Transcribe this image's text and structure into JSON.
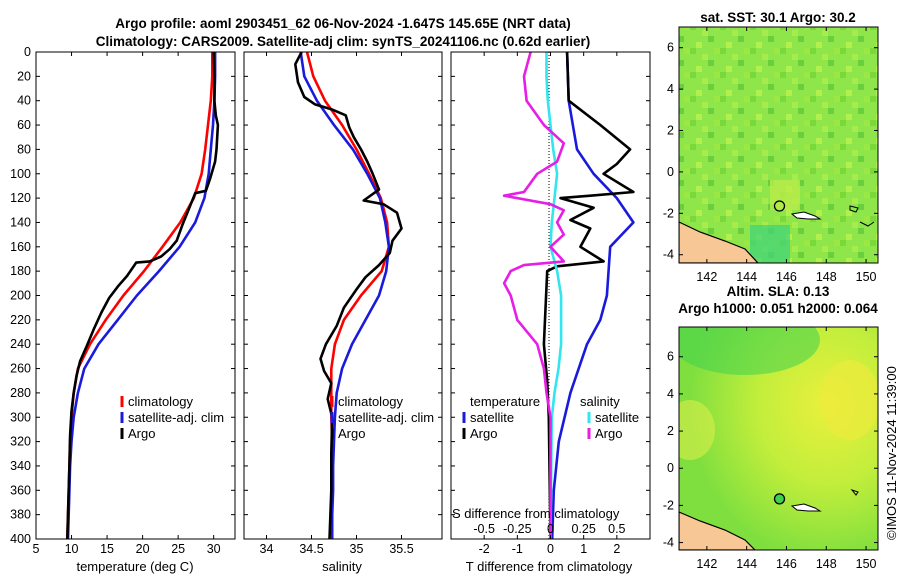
{
  "header": {
    "title_line1": "Argo profile: aoml 2903451_62 06-Nov-2024 -1.647S 145.65E (NRT data)",
    "title_line2": "Climatology: CARS2009. Satellite-adj clim: synTS_20241106.nc (0.62d earlier)"
  },
  "colors": {
    "climatology": "#ff0000",
    "satellite": "#1a1adc",
    "argo": "#000000",
    "salinity_sat": "#33e5ee",
    "salinity_argo": "#e61ee6",
    "land": "#f8c796"
  },
  "depth_axis": {
    "min": 0,
    "max": 400,
    "ticks": [
      "0",
      "20",
      "40",
      "60",
      "80",
      "100",
      "120",
      "140",
      "160",
      "180",
      "200",
      "220",
      "240",
      "260",
      "280",
      "300",
      "320",
      "340",
      "360",
      "380",
      "400"
    ]
  },
  "chart_data": [
    {
      "type": "line",
      "panel": "temperature",
      "xlabel": "temperature (deg C)",
      "xlim": [
        5,
        33
      ],
      "xticks": [
        "5",
        "10",
        "15",
        "20",
        "25",
        "30"
      ],
      "ylim": [
        400,
        0
      ],
      "series": [
        {
          "name": "climatology",
          "color": "#ff0000",
          "points": [
            [
              29.8,
              0
            ],
            [
              29.8,
              20
            ],
            [
              29.6,
              40
            ],
            [
              29.2,
              60
            ],
            [
              28.8,
              80
            ],
            [
              28.3,
              100
            ],
            [
              27.2,
              120
            ],
            [
              25.3,
              140
            ],
            [
              22.8,
              160
            ],
            [
              20.2,
              180
            ],
            [
              17.3,
              200
            ],
            [
              14.8,
              220
            ],
            [
              12.6,
              240
            ],
            [
              10.9,
              260
            ],
            [
              10.3,
              280
            ],
            [
              10.0,
              300
            ],
            [
              9.8,
              320
            ],
            [
              9.7,
              340
            ],
            [
              9.6,
              360
            ],
            [
              9.5,
              380
            ],
            [
              9.4,
              400
            ]
          ]
        },
        {
          "name": "satellite-adj. clim",
          "color": "#1a1adc",
          "points": [
            [
              30.2,
              0
            ],
            [
              30.2,
              20
            ],
            [
              30.1,
              40
            ],
            [
              29.9,
              60
            ],
            [
              29.6,
              80
            ],
            [
              29.3,
              100
            ],
            [
              28.7,
              120
            ],
            [
              27.4,
              140
            ],
            [
              25.2,
              160
            ],
            [
              22.3,
              180
            ],
            [
              19.2,
              200
            ],
            [
              16.5,
              220
            ],
            [
              13.8,
              240
            ],
            [
              11.8,
              260
            ],
            [
              10.9,
              280
            ],
            [
              10.3,
              300
            ],
            [
              10.0,
              320
            ],
            [
              9.8,
              340
            ],
            [
              9.7,
              360
            ],
            [
              9.6,
              380
            ],
            [
              9.5,
              400
            ]
          ]
        },
        {
          "name": "Argo",
          "color": "#000000",
          "points": [
            [
              30.0,
              0
            ],
            [
              30.1,
              20
            ],
            [
              30.1,
              40
            ],
            [
              30.3,
              52
            ],
            [
              30.6,
              60
            ],
            [
              30.4,
              80
            ],
            [
              30.2,
              90
            ],
            [
              29.5,
              104
            ],
            [
              28.9,
              114
            ],
            [
              27.4,
              116
            ],
            [
              26.3,
              132
            ],
            [
              25.6,
              142
            ],
            [
              24.8,
              155
            ],
            [
              23.8,
              162
            ],
            [
              22.6,
              168
            ],
            [
              21.0,
              172
            ],
            [
              19.1,
              173
            ],
            [
              17.8,
              184
            ],
            [
              16.6,
              192
            ],
            [
              15.3,
              202
            ],
            [
              14.2,
              214
            ],
            [
              13.1,
              228
            ],
            [
              12.1,
              242
            ],
            [
              11.2,
              254
            ],
            [
              10.7,
              266
            ],
            [
              10.3,
              280
            ],
            [
              10.0,
              295
            ],
            [
              9.8,
              315
            ],
            [
              9.7,
              340
            ],
            [
              9.6,
              360
            ],
            [
              9.5,
              380
            ],
            [
              9.4,
              400
            ]
          ]
        }
      ]
    },
    {
      "type": "line",
      "panel": "salinity",
      "xlabel": "salinity",
      "xlim": [
        33.75,
        35.95
      ],
      "xticks": [
        "34",
        "34.5",
        "35",
        "35.5"
      ],
      "ylim": [
        400,
        0
      ],
      "series": [
        {
          "name": "climatology",
          "color": "#ff0000",
          "points": [
            [
              34.45,
              0
            ],
            [
              34.52,
              20
            ],
            [
              34.65,
              40
            ],
            [
              34.84,
              60
            ],
            [
              35.0,
              80
            ],
            [
              35.14,
              100
            ],
            [
              35.27,
              120
            ],
            [
              35.34,
              140
            ],
            [
              35.36,
              160
            ],
            [
              35.28,
              180
            ],
            [
              35.05,
              200
            ],
            [
              34.86,
              220
            ],
            [
              34.76,
              240
            ],
            [
              34.72,
              260
            ],
            [
              34.72,
              280
            ],
            [
              34.72,
              300
            ],
            [
              34.73,
              320
            ],
            [
              34.73,
              340
            ],
            [
              34.73,
              360
            ],
            [
              34.73,
              380
            ],
            [
              34.73,
              400
            ]
          ]
        },
        {
          "name": "satellite-adj. clim",
          "color": "#1a1adc",
          "points": [
            [
              34.38,
              0
            ],
            [
              34.42,
              20
            ],
            [
              34.56,
              40
            ],
            [
              34.75,
              60
            ],
            [
              34.96,
              80
            ],
            [
              35.12,
              100
            ],
            [
              35.26,
              120
            ],
            [
              35.32,
              140
            ],
            [
              35.36,
              160
            ],
            [
              35.33,
              180
            ],
            [
              35.25,
              200
            ],
            [
              35.1,
              220
            ],
            [
              34.95,
              240
            ],
            [
              34.84,
              260
            ],
            [
              34.78,
              280
            ],
            [
              34.76,
              300
            ],
            [
              34.75,
              320
            ],
            [
              34.74,
              340
            ],
            [
              34.74,
              360
            ],
            [
              34.73,
              380
            ],
            [
              34.73,
              400
            ]
          ]
        },
        {
          "name": "Argo",
          "color": "#000000",
          "points": [
            [
              34.39,
              0
            ],
            [
              34.32,
              10
            ],
            [
              34.35,
              25
            ],
            [
              34.42,
              37
            ],
            [
              34.54,
              43
            ],
            [
              34.72,
              47
            ],
            [
              34.88,
              52
            ],
            [
              34.92,
              62
            ],
            [
              34.97,
              70
            ],
            [
              35.05,
              80
            ],
            [
              35.12,
              90
            ],
            [
              35.18,
              100
            ],
            [
              35.25,
              113
            ],
            [
              35.08,
              122
            ],
            [
              35.3,
              125
            ],
            [
              35.45,
              132
            ],
            [
              35.5,
              145
            ],
            [
              35.4,
              155
            ],
            [
              35.37,
              165
            ],
            [
              35.25,
              175
            ],
            [
              35.1,
              185
            ],
            [
              35.0,
              195
            ],
            [
              34.86,
              210
            ],
            [
              34.78,
              225
            ],
            [
              34.66,
              240
            ],
            [
              34.6,
              252
            ],
            [
              34.64,
              262
            ],
            [
              34.72,
              272
            ],
            [
              34.68,
              285
            ],
            [
              34.73,
              300
            ],
            [
              34.72,
              330
            ],
            [
              34.72,
              360
            ],
            [
              34.7,
              400
            ]
          ]
        }
      ]
    },
    {
      "type": "line",
      "panel": "difference",
      "xlabel": "T difference from climatology",
      "xlim_T": [
        -3,
        3
      ],
      "xticks_T": [
        "-2",
        "-1",
        "0",
        "1",
        "2"
      ],
      "secondary_label": "S difference from climatology",
      "xlim_S": [
        -0.75,
        0.75
      ],
      "xticks_S": [
        "-0.5",
        "-0.25",
        "0",
        "0.25",
        "0.5"
      ],
      "ylim": [
        400,
        0
      ],
      "legend": {
        "temperature_heading": "temperature",
        "salinity_heading": "salinity",
        "satellite": "satellite",
        "argo": "Argo"
      },
      "series": [
        {
          "name": "temperature satellite",
          "color": "#1a1adc",
          "points": [
            [
              0.5,
              0
            ],
            [
              0.55,
              40
            ],
            [
              0.8,
              80
            ],
            [
              1.3,
              100
            ],
            [
              2.0,
              120
            ],
            [
              2.5,
              140
            ],
            [
              1.8,
              160
            ],
            [
              1.7,
              200
            ],
            [
              1.5,
              220
            ],
            [
              1.1,
              240
            ],
            [
              0.6,
              280
            ],
            [
              0.25,
              320
            ],
            [
              0.1,
              360
            ],
            [
              0.05,
              400
            ]
          ]
        },
        {
          "name": "temperature Argo",
          "color": "#000000",
          "points": [
            [
              0.5,
              0
            ],
            [
              0.55,
              40
            ],
            [
              1.5,
              60
            ],
            [
              2.4,
              80
            ],
            [
              2.0,
              92
            ],
            [
              1.6,
              100
            ],
            [
              2.5,
              115
            ],
            [
              1.2,
              118
            ],
            [
              0.3,
              120
            ],
            [
              1.3,
              128
            ],
            [
              0.6,
              138
            ],
            [
              1.2,
              145
            ],
            [
              0.9,
              160
            ],
            [
              1.6,
              172
            ],
            [
              0.2,
              176
            ],
            [
              -0.1,
              180
            ],
            [
              -0.2,
              240
            ],
            [
              -0.1,
              270
            ],
            [
              -0.05,
              300
            ],
            [
              0.0,
              400
            ]
          ]
        },
        {
          "name": "salinity satellite",
          "color": "#33e5ee",
          "points": [
            [
              -0.03,
              0
            ],
            [
              -0.03,
              20
            ],
            [
              -0.02,
              40
            ],
            [
              0.0,
              60
            ],
            [
              0.02,
              80
            ],
            [
              0.05,
              100
            ],
            [
              0.03,
              120
            ],
            [
              0.01,
              140
            ],
            [
              0.0,
              160
            ],
            [
              0.05,
              180
            ],
            [
              0.08,
              200
            ],
            [
              0.08,
              240
            ],
            [
              0.06,
              260
            ],
            [
              0.03,
              280
            ],
            [
              0.01,
              300
            ],
            [
              0.0,
              400
            ]
          ]
        },
        {
          "name": "salinity Argo",
          "color": "#e61ee6",
          "points": [
            [
              -0.15,
              0
            ],
            [
              -0.2,
              20
            ],
            [
              -0.18,
              40
            ],
            [
              -0.05,
              60
            ],
            [
              0.1,
              75
            ],
            [
              0.05,
              90
            ],
            [
              -0.1,
              100
            ],
            [
              -0.2,
              115
            ],
            [
              -0.35,
              118
            ],
            [
              0.0,
              125
            ],
            [
              0.1,
              130
            ],
            [
              0.05,
              140
            ],
            [
              0.1,
              150
            ],
            [
              0.0,
              160
            ],
            [
              0.1,
              172
            ],
            [
              -0.2,
              175
            ],
            [
              -0.3,
              180
            ],
            [
              -0.35,
              190
            ],
            [
              -0.3,
              200
            ],
            [
              -0.25,
              220
            ],
            [
              -0.1,
              240
            ],
            [
              -0.05,
              260
            ],
            [
              -0.03,
              280
            ],
            [
              0.0,
              300
            ],
            [
              0.0,
              400
            ]
          ]
        }
      ]
    }
  ],
  "legend_tp": {
    "climatology": "climatology",
    "satellite": "satellite-adj. clim",
    "argo": "Argo"
  },
  "maps": {
    "sst": {
      "title": "sat. SST: 30.1 Argo: 30.2",
      "xticks": [
        "142",
        "144",
        "146",
        "148",
        "150"
      ],
      "yticks": [
        "6",
        "4",
        "2",
        "0",
        "-2",
        "-4"
      ],
      "xlim": [
        140.6,
        150.6
      ],
      "ylim": [
        -4.4,
        7.0
      ],
      "argo_lon": 145.65,
      "argo_lat": -1.647
    },
    "sla": {
      "title_line1": "Altim. SLA: 0.13",
      "title_line2": "Argo h1000: 0.051 h2000: 0.064",
      "xticks": [
        "142",
        "144",
        "146",
        "148",
        "150"
      ],
      "yticks": [
        "6",
        "4",
        "2",
        "0",
        "-2",
        "-4"
      ],
      "xlim": [
        140.6,
        150.6
      ],
      "ylim": [
        -4.4,
        7.6
      ],
      "argo_lon": 145.65,
      "argo_lat": -1.647
    }
  },
  "footer": {
    "credit": "©IMOS 11-Nov-2024 11:39:00"
  }
}
